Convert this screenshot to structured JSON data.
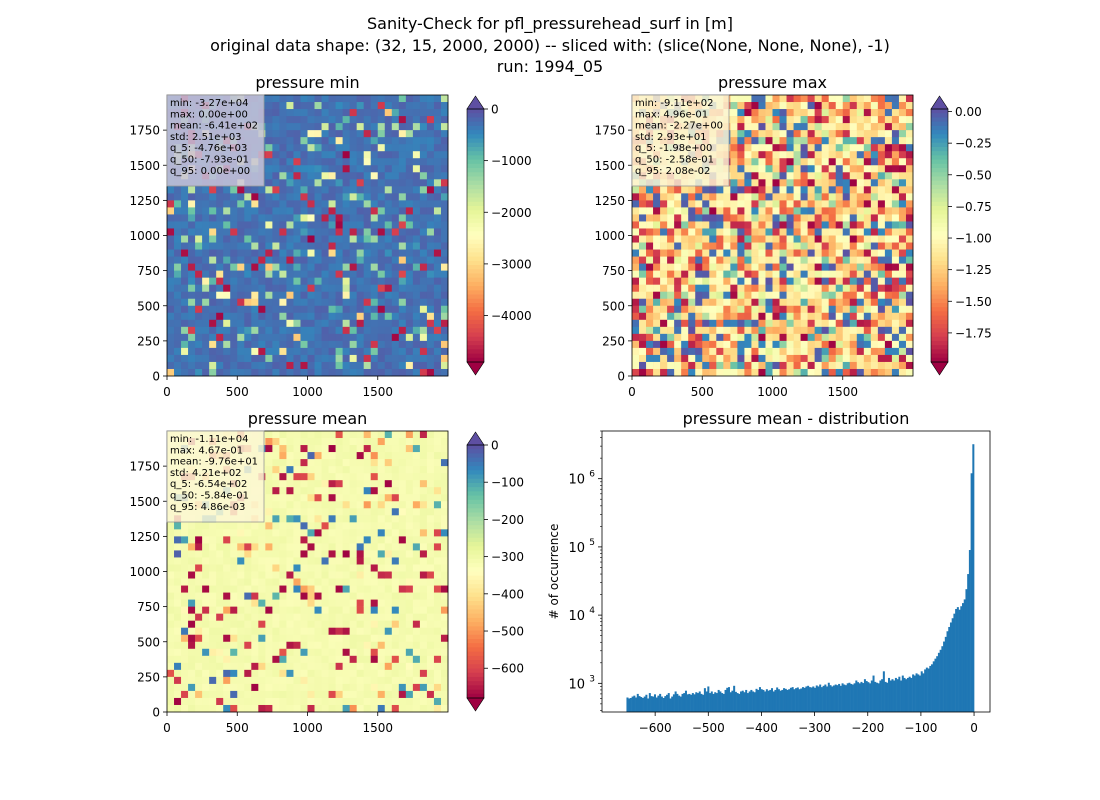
{
  "figure": {
    "title_lines": [
      "Sanity-Check for pfl_pressurehead_surf in [m]",
      "original data shape: (32, 15, 2000, 2000) -- sliced with: (slice(None, None, None), -1)",
      "run: 1994_05"
    ]
  },
  "chart_data": [
    {
      "type": "heatmap",
      "title": "pressure min",
      "colormap": "Spectral",
      "colorbar": {
        "range": [
          -4900,
          0
        ],
        "ticks": [
          0,
          -1000,
          -2000,
          -3000,
          -4000
        ],
        "tick_labels": [
          "0",
          "−1000",
          "−2000",
          "−3000",
          "−4000"
        ],
        "extend": "both"
      },
      "x_range": [
        0,
        2000
      ],
      "y_range": [
        0,
        2000
      ],
      "x_ticks": [
        0,
        500,
        1000,
        1500
      ],
      "x_tick_labels": [
        "0",
        "500",
        "1000",
        "1500"
      ],
      "y_ticks": [
        0,
        250,
        500,
        750,
        1000,
        1250,
        1500,
        1750
      ],
      "y_tick_labels": [
        "0",
        "250",
        "500",
        "750",
        "1000",
        "1250",
        "1500",
        "1750"
      ],
      "stats": [
        "min: -3.27e+04",
        "max: 0.00e+00",
        "mean: -6.41e+02",
        "std: 2.51e+03",
        "q_5: -4.76e+03",
        "q_50: -7.93e-01",
        "q_95: 0.00e+00"
      ],
      "stats_box_color": "#c8c3d8",
      "seed": 11
    },
    {
      "type": "heatmap",
      "title": "pressure max",
      "colormap": "Spectral",
      "colorbar": {
        "range": [
          -1.98,
          0.02
        ],
        "ticks": [
          0,
          -0.25,
          -0.5,
          -0.75,
          -1.0,
          -1.25,
          -1.5,
          -1.75
        ],
        "tick_labels": [
          "0.00",
          "−0.25",
          "−0.50",
          "−0.75",
          "−1.00",
          "−1.25",
          "−1.50",
          "−1.75"
        ],
        "extend": "both"
      },
      "x_range": [
        0,
        2000
      ],
      "y_range": [
        0,
        2000
      ],
      "x_ticks": [
        0,
        500,
        1000,
        1500
      ],
      "x_tick_labels": [
        "0",
        "500",
        "1000",
        "1500"
      ],
      "y_ticks": [
        0,
        250,
        500,
        750,
        1000,
        1250,
        1500,
        1750
      ],
      "y_tick_labels": [
        "0",
        "250",
        "500",
        "750",
        "1000",
        "1250",
        "1500",
        "1750"
      ],
      "stats": [
        "min: -9.11e+02",
        "max: 4.96e-01",
        "mean: -2.27e+00",
        "std: 2.93e+01",
        "q_5: -1.98e+00",
        "q_50: -2.58e-01",
        "q_95: 2.08e-02"
      ],
      "stats_box_color": "#fbf5d2",
      "seed": 23
    },
    {
      "type": "heatmap",
      "title": "pressure mean",
      "colormap": "Spectral",
      "colorbar": {
        "range": [
          -680,
          0
        ],
        "ticks": [
          0,
          -100,
          -200,
          -300,
          -400,
          -500,
          -600
        ],
        "tick_labels": [
          "0",
          "−100",
          "−200",
          "−300",
          "−400",
          "−500",
          "−600"
        ],
        "extend": "both"
      },
      "x_range": [
        0,
        2000
      ],
      "y_range": [
        0,
        2000
      ],
      "x_ticks": [
        0,
        500,
        1000,
        1500
      ],
      "x_tick_labels": [
        "0",
        "500",
        "1000",
        "1500"
      ],
      "y_ticks": [
        0,
        250,
        500,
        750,
        1000,
        1250,
        1500,
        1750
      ],
      "y_tick_labels": [
        "0",
        "250",
        "500",
        "750",
        "1000",
        "1250",
        "1500",
        "1750"
      ],
      "stats": [
        "min: -1.11e+04",
        "max: 4.67e-01",
        "mean: -9.76e+01",
        "std: 4.21e+02",
        "q_5: -6.54e+02",
        "q_50: -5.84e-01",
        "q_95: 4.86e-03"
      ],
      "stats_box_color": "#fcf7d4",
      "seed": 37
    },
    {
      "type": "bar",
      "title": "pressure mean - distribution",
      "ylabel": "# of occurrence",
      "xlabel": "",
      "yscale": "log",
      "xlim": [
        -700,
        30
      ],
      "ylim": [
        380,
        5000000
      ],
      "x_ticks": [
        -600,
        -500,
        -400,
        -300,
        -200,
        -100,
        0
      ],
      "x_tick_labels": [
        "−600",
        "−500",
        "−400",
        "−300",
        "−200",
        "−100",
        "0"
      ],
      "y_ticks": [
        1000,
        10000,
        100000,
        1000000
      ],
      "y_tick_bases": [
        "10",
        "10",
        "10",
        "10"
      ],
      "y_tick_exps": [
        "3",
        "4",
        "5",
        "6"
      ],
      "bar_color": "#1f77b4",
      "bin_range": [
        -654,
        0
      ],
      "bin_count": 200,
      "counts": [
        620,
        600,
        610,
        640,
        660,
        620,
        700,
        650,
        630,
        610,
        640,
        680,
        600,
        720,
        650,
        640,
        690,
        620,
        660,
        700,
        640,
        610,
        650,
        680,
        720,
        600,
        640,
        690,
        760,
        700,
        660,
        640,
        700,
        720,
        780,
        690,
        700,
        680,
        720,
        690,
        740,
        720,
        760,
        700,
        680,
        850,
        760,
        900,
        720,
        760,
        700,
        740,
        720,
        800,
        760,
        720,
        700,
        800,
        860,
        880,
        740,
        780,
        920,
        750,
        720,
        700,
        760,
        780,
        740,
        800,
        720,
        760,
        800,
        760,
        740,
        830,
        800,
        880,
        820,
        800,
        760,
        820,
        780,
        800,
        850,
        760,
        800,
        870,
        820,
        780,
        800,
        850,
        830,
        800,
        820,
        860,
        880,
        820,
        850,
        870,
        820,
        840,
        880,
        860,
        900,
        920,
        880,
        870,
        900,
        860,
        930,
        900,
        960,
        880,
        920,
        960,
        900,
        1020,
        940,
        900,
        930,
        960,
        940,
        980,
        920,
        1000,
        960,
        940,
        1000,
        1020,
        980,
        960,
        1000,
        1100,
        1040,
        1000,
        1050,
        1010,
        1150,
        1080,
        1040,
        1000,
        1100,
        1300,
        1050,
        1020,
        1000,
        1100,
        1150,
        1500,
        1050,
        1020,
        1200,
        1100,
        1150,
        1100,
        1200,
        1150,
        1250,
        1100,
        1300,
        1200,
        1150,
        1200,
        1250,
        1200,
        1350,
        1300,
        1400,
        1350,
        1300,
        1500,
        1400,
        1600,
        1700,
        1650,
        1800,
        1900,
        2100,
        2300,
        2500,
        2800,
        3100,
        3500,
        4100,
        4800,
        5800,
        6700,
        7800,
        9000,
        10500,
        12300,
        13100,
        12000,
        13500,
        15000,
        17000,
        24000,
        40000,
        90000,
        1200000,
        3200000
      ]
    }
  ]
}
